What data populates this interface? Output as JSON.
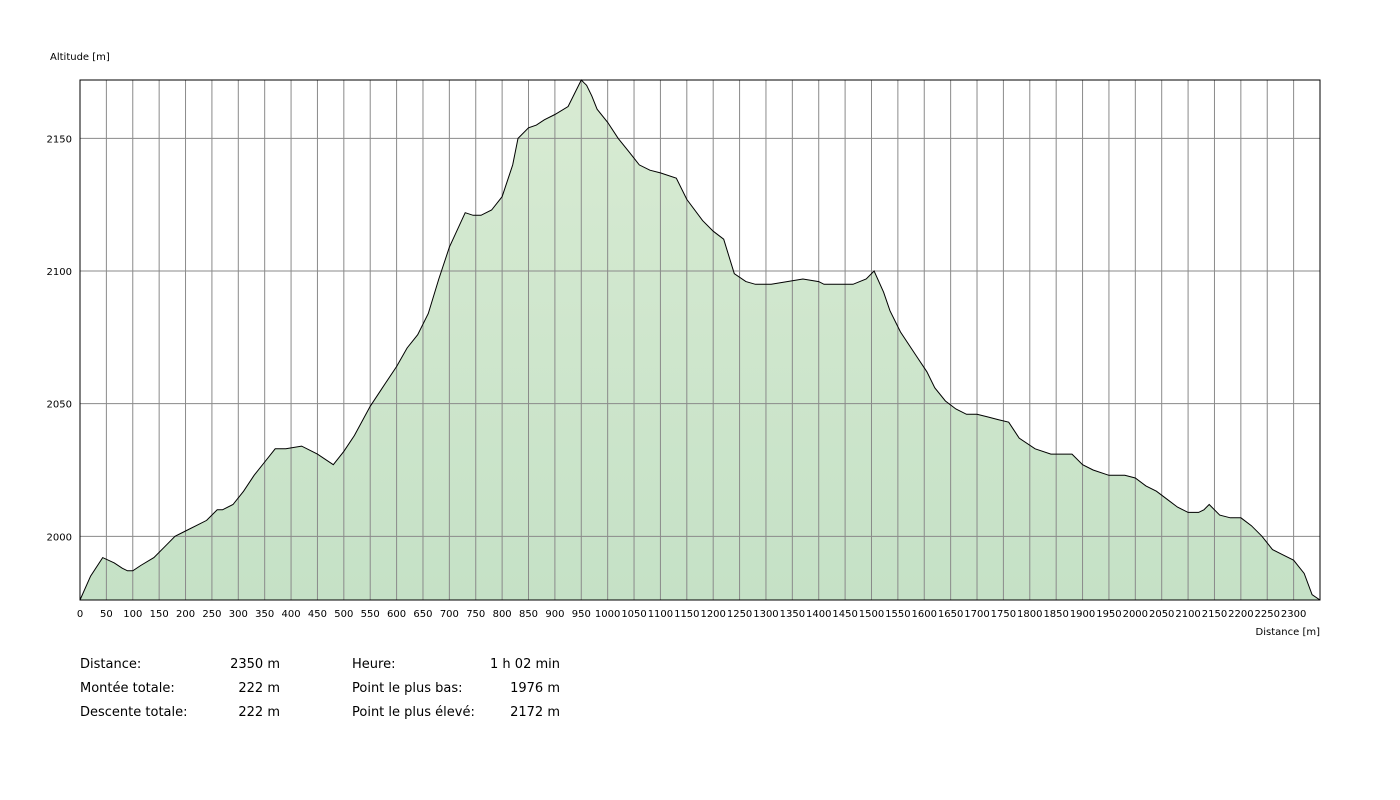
{
  "chart_data": {
    "type": "area",
    "ylabel": "Altitude [m]",
    "xlabel": "Distance [m]",
    "xlim": [
      0,
      2350
    ],
    "ylim": [
      1976,
      2172
    ],
    "yticks": [
      2000,
      2050,
      2100,
      2150
    ],
    "xticks": [
      0,
      50,
      100,
      150,
      200,
      250,
      300,
      350,
      400,
      450,
      500,
      550,
      600,
      650,
      700,
      750,
      800,
      850,
      900,
      950,
      1000,
      1050,
      1100,
      1150,
      1200,
      1250,
      1300,
      1350,
      1400,
      1450,
      1500,
      1550,
      1600,
      1650,
      1700,
      1750,
      1800,
      1850,
      1900,
      1950,
      2000,
      2050,
      2100,
      2150,
      2200,
      2250,
      2300
    ],
    "grid": true,
    "fill_color": "#cde5cc",
    "line_color": "#000000",
    "x": [
      0,
      20,
      43,
      65,
      80,
      90,
      100,
      115,
      140,
      165,
      180,
      200,
      220,
      240,
      260,
      270,
      290,
      310,
      330,
      350,
      370,
      390,
      420,
      450,
      480,
      500,
      520,
      550,
      580,
      600,
      620,
      640,
      660,
      680,
      700,
      730,
      745,
      760,
      780,
      800,
      820,
      830,
      850,
      865,
      880,
      900,
      925,
      940,
      950,
      955,
      960,
      970,
      980,
      1000,
      1020,
      1040,
      1060,
      1080,
      1100,
      1130,
      1150,
      1180,
      1200,
      1220,
      1240,
      1262,
      1280,
      1290,
      1310,
      1340,
      1370,
      1400,
      1410,
      1440,
      1465,
      1490,
      1505,
      1523,
      1535,
      1555,
      1585,
      1605,
      1620,
      1640,
      1660,
      1680,
      1700,
      1720,
      1740,
      1760,
      1780,
      1810,
      1840,
      1860,
      1880,
      1900,
      1920,
      1950,
      1980,
      2000,
      2020,
      2040,
      2060,
      2080,
      2100,
      2120,
      2130,
      2140,
      2160,
      2180,
      2200,
      2220,
      2240,
      2260,
      2280,
      2300,
      2320,
      2335,
      2350
    ],
    "y": [
      1976,
      1985,
      1992,
      1990,
      1988,
      1987,
      1987,
      1989,
      1992,
      1997,
      2000,
      2002,
      2004,
      2006,
      2010,
      2010,
      2012,
      2017,
      2023,
      2028,
      2033,
      2033,
      2034,
      2031,
      2027,
      2032,
      2038,
      2049,
      2058,
      2064,
      2071,
      2076,
      2084,
      2097,
      2109,
      2122,
      2121,
      2121,
      2123,
      2128,
      2140,
      2150,
      2154,
      2155,
      2157,
      2159,
      2162,
      2168,
      2172,
      2171,
      2170,
      2166,
      2161,
      2156,
      2150,
      2145,
      2140,
      2138,
      2137,
      2135,
      2127,
      2119,
      2115,
      2112,
      2099,
      2096,
      2095,
      2095,
      2095,
      2096,
      2097,
      2096,
      2095,
      2095,
      2095,
      2097,
      2100,
      2092,
      2085,
      2077,
      2068,
      2062,
      2056,
      2051,
      2048,
      2046,
      2046,
      2045,
      2044,
      2043,
      2037,
      2033,
      2031,
      2031,
      2031,
      2027,
      2025,
      2023,
      2023,
      2022,
      2019,
      2017,
      2014,
      2011,
      2009,
      2009,
      2010,
      2012,
      2008,
      2007,
      2007,
      2004,
      2000,
      1995,
      1993,
      1991,
      1986,
      1978,
      1976
    ]
  },
  "stats": {
    "left": [
      {
        "label": "Distance:",
        "value": "2350 m"
      },
      {
        "label": "Montée totale:",
        "value": "222 m"
      },
      {
        "label": "Descente totale:",
        "value": "222 m"
      }
    ],
    "right": [
      {
        "label": "Heure:",
        "value": "1 h 02 min"
      },
      {
        "label": "Point le plus bas:",
        "value": "1976 m"
      },
      {
        "label": "Point le plus élevé:",
        "value": "2172 m"
      }
    ]
  }
}
